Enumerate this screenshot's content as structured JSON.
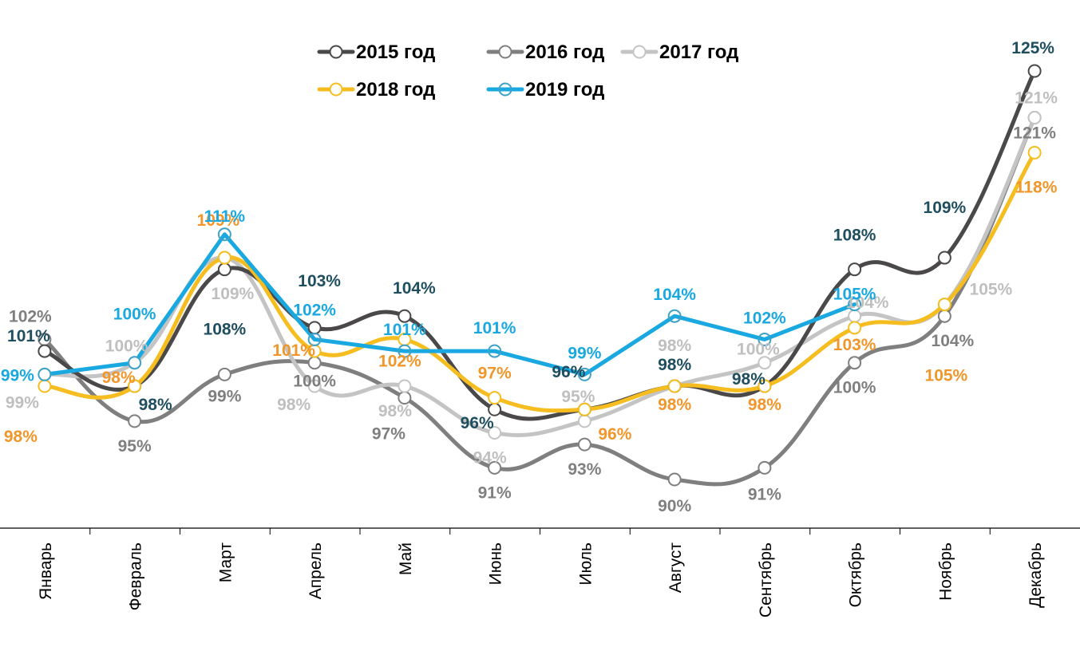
{
  "chart_data": {
    "type": "line",
    "title": "",
    "xlabel": "",
    "ylabel": "",
    "ylim": [
      86,
      128
    ],
    "grid": false,
    "smooth": true,
    "legend_position": "top-center",
    "categories": [
      "Январь",
      "Февраль",
      "Март",
      "Апрель",
      "Май",
      "Июнь",
      "Июль",
      "Август",
      "Сентябрь",
      "Октябрь",
      "Ноябрь",
      "Декабрь"
    ],
    "series": [
      {
        "name": "2015 год",
        "line_color": "#4a4848",
        "label_color": "#1f4e5f",
        "values": [
          101,
          98,
          108,
          103,
          104,
          96,
          96,
          98,
          98,
          108,
          109,
          125
        ],
        "labels": [
          "101%",
          "98%",
          "108%",
          "103%",
          "104%",
          "96%",
          "96%",
          "98%",
          "98%",
          "108%",
          "109%",
          "125%"
        ]
      },
      {
        "name": "2016 год",
        "line_color": "#7f7f7f",
        "label_color": "#7f7f7f",
        "values": [
          102,
          95,
          99,
          100,
          97,
          91,
          93,
          90,
          91,
          100,
          104,
          121
        ],
        "labels": [
          "102%",
          "95%",
          "99%",
          "100%",
          "97%",
          "91%",
          "93%",
          "90%",
          "91%",
          "100%",
          "104%",
          "121%"
        ]
      },
      {
        "name": "2017 год",
        "line_color": "#c4c4c4",
        "label_color": "#bfbfbf",
        "values": [
          99,
          100,
          109,
          98,
          98,
          94,
          95,
          98,
          100,
          104,
          105,
          121
        ],
        "labels": [
          "99%",
          "100%",
          "109%",
          "98%",
          "98%",
          "94%",
          "95%",
          "98%",
          "100%",
          "104%",
          "105%",
          "121%"
        ]
      },
      {
        "name": "2018 год",
        "line_color": "#f5bd1f",
        "label_color": "#f0962a",
        "values": [
          98,
          98,
          109,
          101,
          102,
          97,
          96,
          98,
          98,
          103,
          105,
          118
        ],
        "labels": [
          "98%",
          "98%",
          "109%",
          "101%",
          "102%",
          "97%",
          "96%",
          "98%",
          "98%",
          "103%",
          "105%",
          "118%"
        ]
      },
      {
        "name": "2019 год",
        "line_color": "#1aa8e0",
        "label_color": "#1aa8e0",
        "values": [
          99,
          100,
          111,
          102,
          101,
          101,
          99,
          104,
          102,
          105,
          null,
          null
        ],
        "labels": [
          "99%",
          "100%",
          "111%",
          "102%",
          "101%",
          "101%",
          "99%",
          "104%",
          "102%",
          "105%",
          null,
          null
        ]
      }
    ]
  }
}
